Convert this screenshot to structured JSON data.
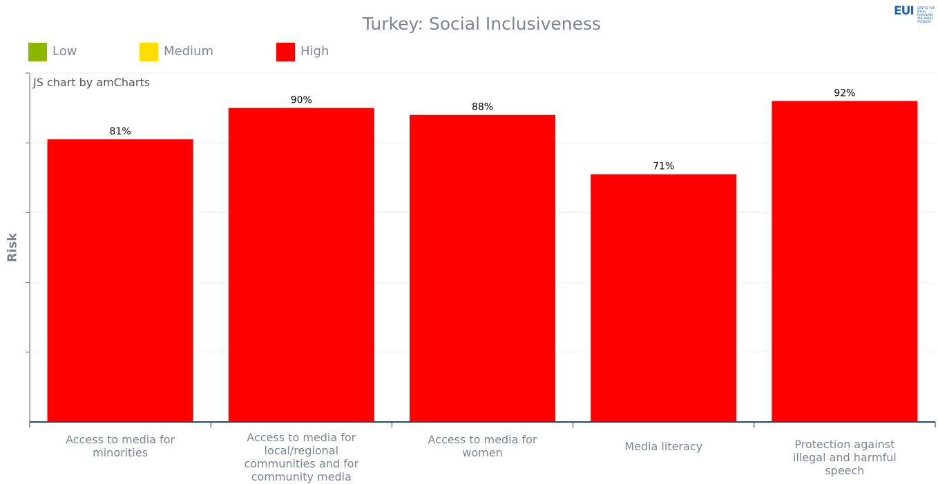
{
  "logo": {
    "text": "EUI",
    "small_text": "CENTRE FOR MEDIA PLURALISM AND MEDIA FREEDOM"
  },
  "credit": "JS chart by amCharts",
  "chart_data": {
    "type": "bar",
    "title": "Turkey: Social Inclusiveness",
    "xlabel": "",
    "ylabel": "Risk",
    "ylim": [
      0,
      100
    ],
    "y_tick_labels_shown": false,
    "grid": true,
    "legend_position": "top-left",
    "legend": [
      {
        "label": "Low",
        "color": "#8db600"
      },
      {
        "label": "Medium",
        "color": "#ffdd00"
      },
      {
        "label": "High",
        "color": "#ff0000"
      }
    ],
    "categories": [
      "Access to media for minorities",
      "Access to media for local/regional communities and for community media",
      "Access to media for women",
      "Media literacy",
      "Protection against illegal and harmful speech"
    ],
    "category_label_lines": [
      [
        "Access to media for",
        "minorities"
      ],
      [
        "Access to media for",
        "local/regional",
        "communities and for",
        "community media"
      ],
      [
        "Access to media for",
        "women"
      ],
      [
        "Media literacy"
      ],
      [
        "Protection against",
        "illegal and harmful",
        "speech"
      ]
    ],
    "values": [
      81,
      90,
      88,
      71,
      92
    ],
    "value_labels": [
      "81%",
      "90%",
      "88%",
      "71%",
      "92%"
    ],
    "bar_color": "#ff0000"
  }
}
